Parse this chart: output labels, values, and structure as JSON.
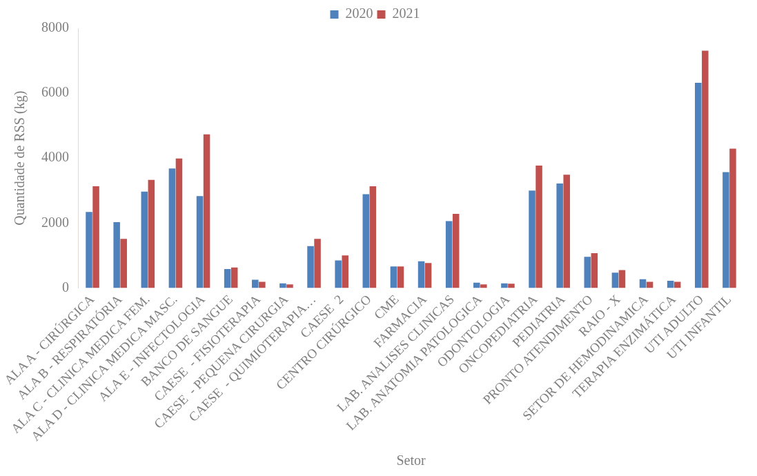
{
  "chart_data": {
    "type": "bar",
    "xlabel": "Setor",
    "ylabel": "Quantidade de RSS (kg)",
    "categories": [
      "ALA A - CIRÚRGICA",
      "ALA B - RESPIRATÓRIA",
      "ALA C - CLINICA MEDICA FEM.",
      "ALA D - CLINICA MEDICA MASC.",
      "ALA E - INFECTOLOGIA",
      "BANCO DE SANGUE",
      "CAESE  - FISIOTERAPIA",
      "CAESE  - PEQUENA CIRURGIA",
      "CAESE  - QUIMIOTERAPIA…",
      "CAESE  2",
      "CENTRO CIRÚRGICO",
      "CME",
      "FARMACIA",
      "LAB. ANALISES CLINICAS",
      "LAB. ANATOMIA PATOLOGICA",
      "ODONTOLOGIA",
      "ONCOPEDIATRIA",
      "PEDIATRIA",
      "PRONTO ATENDIMENTO",
      "RAIO - X",
      "SETOR DE HEMODINAMICA",
      "TERAPIA ENZIMÁTICA",
      "UTI ADULTO",
      "UTI INFANTIL"
    ],
    "series": [
      {
        "name": "2020",
        "color": "#4f81bd",
        "values": [
          2340,
          2030,
          2970,
          3680,
          2830,
          580,
          250,
          140,
          1290,
          850,
          2890,
          660,
          820,
          2060,
          160,
          140,
          3000,
          3220,
          960,
          470,
          270,
          220,
          6320,
          3570
        ]
      },
      {
        "name": "2021",
        "color": "#c0504d",
        "values": [
          3130,
          1510,
          3330,
          3990,
          4730,
          630,
          190,
          110,
          1510,
          1000,
          3130,
          660,
          770,
          2280,
          110,
          130,
          3770,
          3490,
          1070,
          550,
          190,
          190,
          7310,
          4290
        ]
      }
    ],
    "ylim": [
      0,
      8000
    ],
    "yticks": [
      0,
      2000,
      4000,
      6000,
      8000
    ],
    "grid": false,
    "legend": "top"
  }
}
